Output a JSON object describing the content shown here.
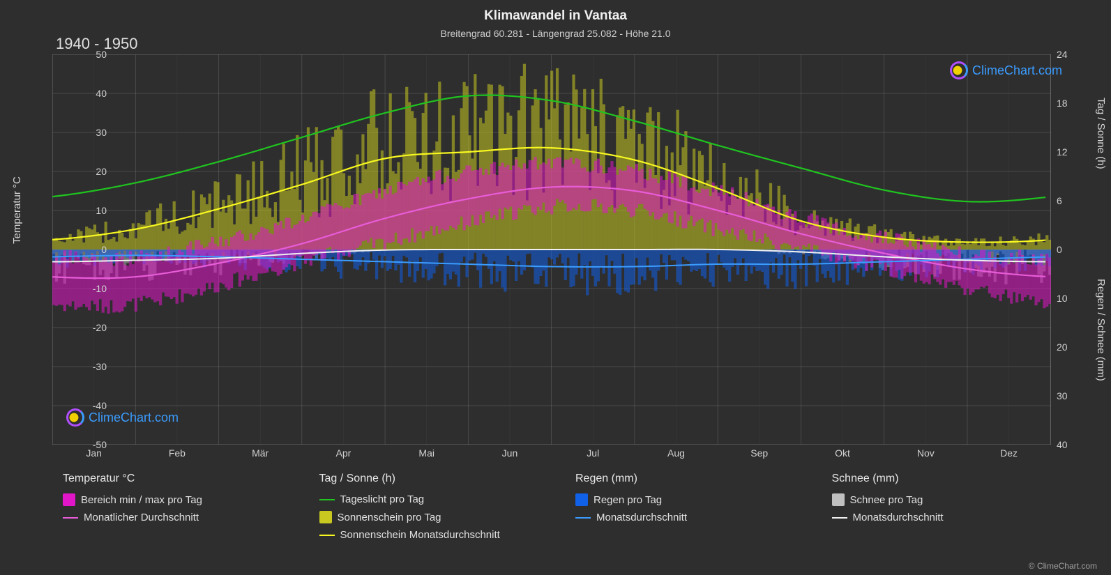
{
  "title": "Klimawandel in Vantaa",
  "subtitle": "Breitengrad 60.281 - Längengrad 25.082 - Höhe 21.0",
  "period": "1940 - 1950",
  "brand": "ClimeChart.com",
  "copyright": "© ClimeChart.com",
  "axes": {
    "left_label": "Temperatur °C",
    "right_top_label": "Tag / Sonne (h)",
    "right_bottom_label": "Regen / Schnee (mm)",
    "left_ticks": [
      50,
      40,
      30,
      20,
      10,
      0,
      -10,
      -20,
      -30,
      -40,
      -50
    ],
    "left_min": -50,
    "left_max": 50,
    "right_top_ticks": [
      24,
      18,
      12,
      6,
      0
    ],
    "right_top_min": 0,
    "right_top_max": 24,
    "right_bottom_ticks": [
      0,
      10,
      20,
      30,
      40
    ],
    "right_bottom_min": 0,
    "right_bottom_max": 40,
    "months": [
      "Jan",
      "Feb",
      "Mär",
      "Apr",
      "Mai",
      "Jun",
      "Jul",
      "Aug",
      "Sep",
      "Okt",
      "Nov",
      "Dez"
    ]
  },
  "colors": {
    "background": "#2e2e2e",
    "grid": "#707070",
    "grid_minor": "#555555",
    "text": "#e0e0e0",
    "temp_range": "#e016c8",
    "temp_avg": "#e85cd8",
    "daylight": "#1fc41f",
    "sunshine_bars": "#c8c820",
    "sunshine_avg": "#f8f820",
    "rain_bars": "#1060e8",
    "rain_avg": "#3b9cff",
    "snow_bars": "#c0c0c0",
    "snow_avg": "#f0f0f0",
    "brand": "#3b9cff"
  },
  "fonts": {
    "title_size": 19,
    "subtitle_size": 14,
    "period_size": 22,
    "tick_size": 14,
    "axis_label_size": 15,
    "legend_header_size": 16,
    "legend_item_size": 15
  },
  "legend": {
    "col1_header": "Temperatur °C",
    "col1_item1": "Bereich min / max pro Tag",
    "col1_item2": "Monatlicher Durchschnitt",
    "col2_header": "Tag / Sonne (h)",
    "col2_item1": "Tageslicht pro Tag",
    "col2_item2": "Sonnenschein pro Tag",
    "col2_item3": "Sonnenschein Monatsdurchschnitt",
    "col3_header": "Regen (mm)",
    "col3_item1": "Regen pro Tag",
    "col3_item2": "Monatsdurchschnitt",
    "col4_header": "Schnee (mm)",
    "col4_item1": "Schnee pro Tag",
    "col4_item2": "Monatsdurchschnitt"
  },
  "series": {
    "daylight_h": [
      6.5,
      8.2,
      10.8,
      13.8,
      16.8,
      18.9,
      18.3,
      15.8,
      12.8,
      10.0,
      7.3,
      5.9
    ],
    "sunshine_avg_h": [
      1.2,
      2.5,
      5.0,
      8.0,
      11.2,
      12.0,
      12.5,
      11.0,
      7.5,
      3.5,
      1.5,
      0.9
    ],
    "temp_avg_c": [
      -7,
      -7,
      -3.5,
      1.5,
      8,
      13,
      16,
      15,
      10,
      4,
      -1,
      -5
    ],
    "temp_max_c": [
      -2,
      -2,
      2,
      8,
      15,
      20,
      22,
      20,
      15,
      8,
      3,
      -1
    ],
    "temp_min_c": [
      -14,
      -14,
      -9,
      -3,
      2,
      7,
      11,
      10,
      5,
      0,
      -5,
      -10
    ],
    "rain_avg_mm": [
      1.5,
      1.2,
      1.5,
      2,
      2.5,
      3,
      3.5,
      3.5,
      3,
      3,
      2.5,
      2
    ],
    "snow_avg_mm": [
      2.5,
      2.2,
      1.8,
      0.8,
      0.1,
      0,
      0,
      0,
      0,
      0.5,
      1.5,
      2.2
    ]
  },
  "daily_noise_seed": 7
}
